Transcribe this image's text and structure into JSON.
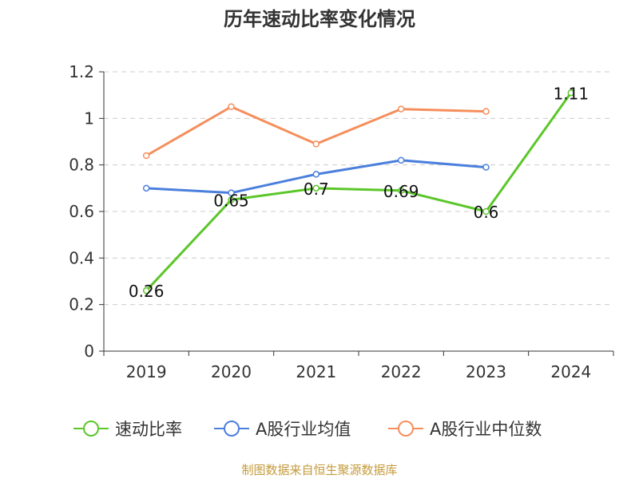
{
  "chart_data": {
    "type": "line",
    "title": "历年速动比率变化情况",
    "categories": [
      "2019",
      "2020",
      "2021",
      "2022",
      "2023",
      "2024"
    ],
    "y_ticks": [
      "0",
      "0.2",
      "0.4",
      "0.6",
      "0.8",
      "1",
      "1.2"
    ],
    "ylim": [
      0,
      1.2
    ],
    "grid": true,
    "legend_position": "bottom",
    "series": [
      {
        "name": "速动比率",
        "color": "#5cc62a",
        "values": [
          0.26,
          0.65,
          0.7,
          0.69,
          0.6,
          1.11
        ],
        "data_labels": [
          "0.26",
          "0.65",
          "0.7",
          "0.69",
          "0.6",
          "1.11"
        ]
      },
      {
        "name": "A股行业均值",
        "color": "#4a7fdc",
        "values": [
          0.7,
          0.68,
          0.76,
          0.82,
          0.79,
          null
        ]
      },
      {
        "name": "A股行业中位数",
        "color": "#f68e5b",
        "values": [
          0.84,
          1.05,
          0.89,
          1.04,
          1.03,
          null
        ]
      }
    ],
    "source_note": "制图数据来自恒生聚源数据库"
  }
}
